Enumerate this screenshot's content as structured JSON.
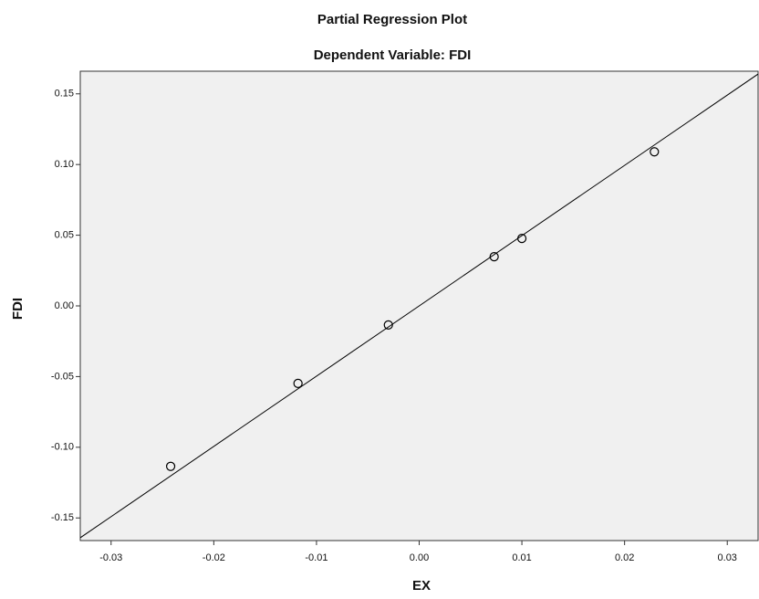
{
  "chart_data": {
    "type": "scatter",
    "title": "Partial Regression Plot",
    "subtitle": "Dependent Variable: FDI",
    "x_label": "EX",
    "y_label": "FDI",
    "x": [
      -0.0242,
      -0.0118,
      -0.003,
      0.0073,
      0.01,
      0.0229
    ],
    "values": [
      -0.1135,
      -0.0548,
      -0.0135,
      0.0348,
      0.0477,
      0.109
    ],
    "color": "#000000",
    "fit_line": {
      "x": [
        -0.033,
        0.033
      ],
      "y": [
        -0.164,
        0.164
      ],
      "color": "#000000"
    },
    "xlim": [
      -0.033,
      0.033
    ],
    "ylim": [
      -0.166,
      0.166
    ],
    "xticks": [
      -0.03,
      -0.02,
      -0.01,
      {
        "value": 0,
        "label": "0.00"
      },
      0.01,
      0.02,
      0.03
    ],
    "yticks": [
      {
        "value": -0.15,
        "label": "-0.15"
      },
      {
        "value": -0.1,
        "label": "-0.10"
      },
      -0.05,
      {
        "value": 0,
        "label": "0.00"
      },
      0.05,
      {
        "value": 0.1,
        "label": "0.10"
      },
      0.15
    ],
    "grid": false,
    "plot_background": "#f0f0f0"
  }
}
